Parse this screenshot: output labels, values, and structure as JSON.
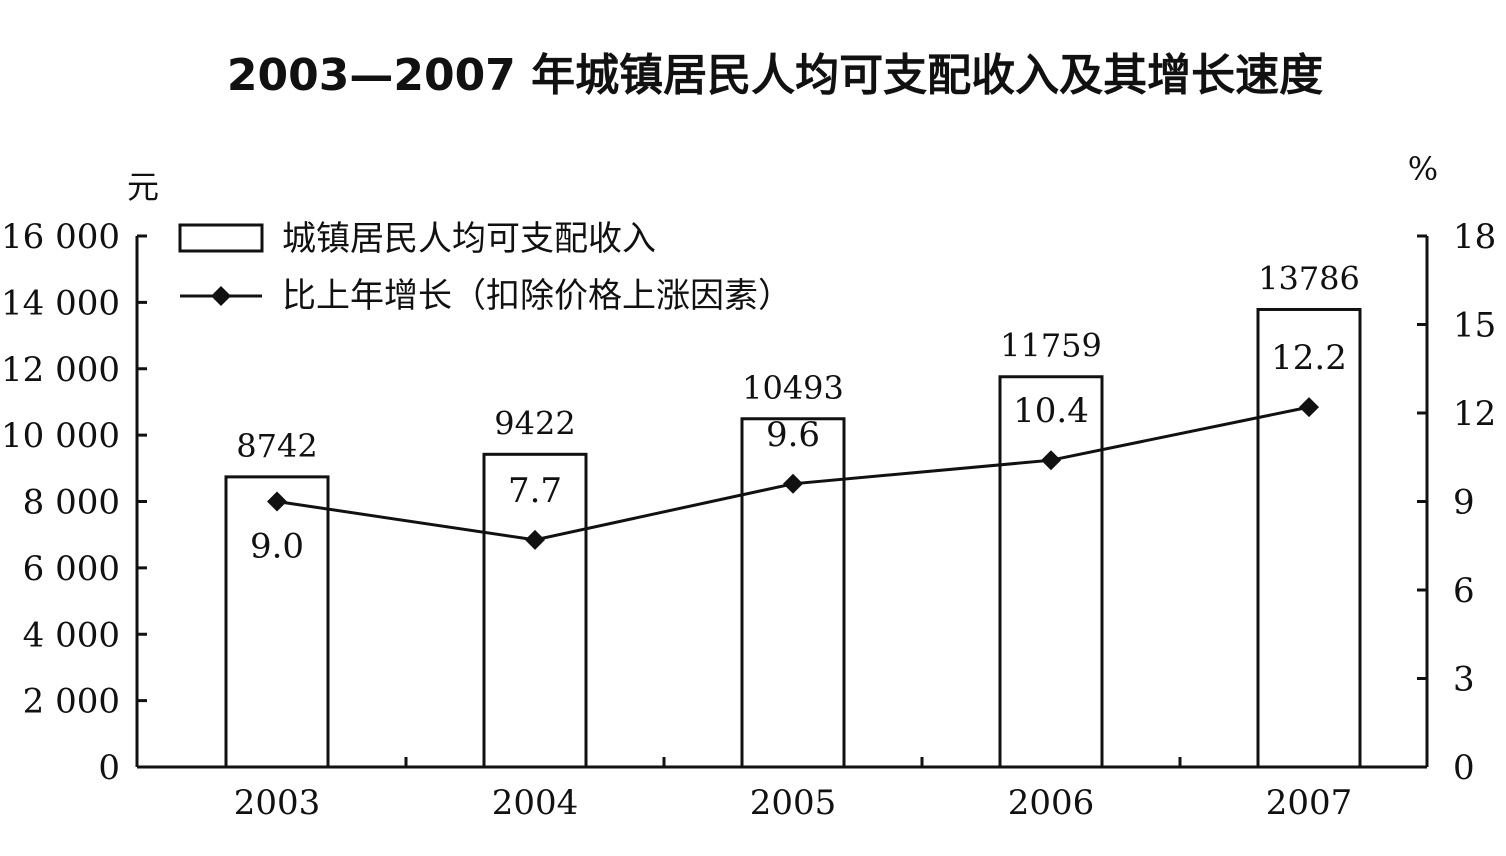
{
  "chart_data": {
    "type": "bar",
    "title": "2003—2007 年城镇居民人均可支配收入及其增长速度",
    "categories": [
      "2003",
      "2004",
      "2005",
      "2006",
      "2007"
    ],
    "series": [
      {
        "name": "城镇居民人均可支配收入",
        "type": "bar",
        "axis": "left",
        "values": [
          8742,
          9422,
          10493,
          11759,
          13786
        ],
        "labels": [
          "8742",
          "9422",
          "10493",
          "11759",
          "13786"
        ]
      },
      {
        "name": "比上年增长（扣除价格上涨因素）",
        "type": "line",
        "axis": "right",
        "values": [
          9.0,
          7.7,
          9.6,
          10.4,
          12.2
        ],
        "labels": [
          "9.0",
          "7.7",
          "9.6",
          "10.4",
          "12.2"
        ]
      }
    ],
    "y_left": {
      "unit": "元",
      "ylim": [
        0,
        16000
      ],
      "ticks": [
        0,
        2000,
        4000,
        6000,
        8000,
        10000,
        12000,
        14000,
        16000
      ],
      "tick_labels": [
        "0",
        "2 000",
        "4 000",
        "6 000",
        "8 000",
        "10 000",
        "12 000",
        "14 000",
        "16 000"
      ]
    },
    "y_right": {
      "unit": "%",
      "ylim": [
        0,
        18
      ],
      "ticks": [
        0,
        3,
        6,
        9,
        12,
        15,
        18
      ],
      "tick_labels": [
        "0",
        "3",
        "6",
        "9",
        "12",
        "15",
        "18"
      ]
    },
    "legend": "top-left",
    "grid": false
  },
  "colors": {
    "ink": "#111111",
    "bar_fill": "#ffffff"
  }
}
